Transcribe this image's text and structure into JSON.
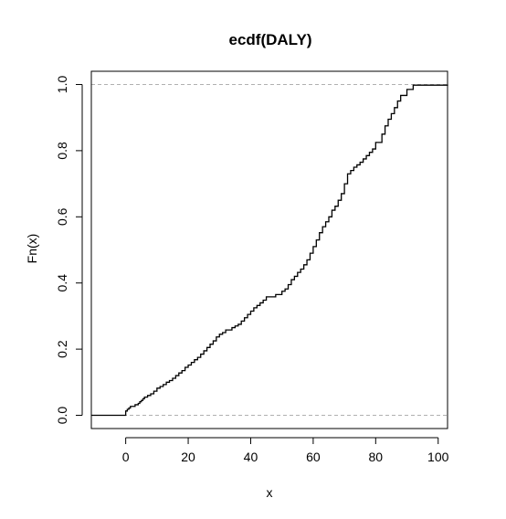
{
  "chart_data": {
    "type": "line",
    "subtype": "ecdf-step",
    "title": "ecdf(DALY)",
    "xlabel": "x",
    "ylabel": "Fn(x)",
    "xlim": [
      -11,
      103
    ],
    "ylim": [
      -0.04,
      1.04
    ],
    "x_ticks": [
      0,
      20,
      40,
      60,
      80,
      100
    ],
    "x_tick_labels": [
      "0",
      "20",
      "40",
      "60",
      "80",
      "100"
    ],
    "y_ticks": [
      0.0,
      0.2,
      0.4,
      0.6,
      0.8,
      1.0
    ],
    "y_tick_labels": [
      "0.0",
      "0.2",
      "0.4",
      "0.6",
      "0.8",
      "1.0"
    ],
    "reference_lines": [
      0,
      1
    ],
    "grid": false,
    "legend": "none",
    "colors": {
      "line": "#000000",
      "reference": "#b0b0b0",
      "frame": "#000000",
      "background": "#ffffff"
    },
    "series": [
      {
        "x": [
          -11,
          0,
          0.5,
          1,
          1.5,
          3,
          4,
          4.5,
          5,
          5.5,
          6,
          7,
          8,
          9,
          10,
          11,
          12,
          13,
          14,
          15,
          16,
          17,
          18,
          19,
          20,
          21,
          22,
          23,
          24,
          25,
          26,
          27,
          28,
          29,
          30,
          31,
          32,
          34,
          35,
          36,
          37,
          38,
          39,
          40,
          41,
          42,
          43,
          44,
          45,
          48,
          50,
          51,
          52,
          53,
          54,
          55,
          56,
          57,
          58,
          59,
          60,
          61,
          62,
          63,
          64,
          65,
          66,
          67,
          68,
          69,
          70,
          71,
          72,
          73,
          74,
          75,
          76,
          77,
          78,
          79,
          80,
          82,
          83,
          84,
          85,
          86,
          87,
          88,
          90,
          92,
          103
        ],
        "y": [
          0.0,
          0.013,
          0.018,
          0.022,
          0.027,
          0.032,
          0.036,
          0.041,
          0.045,
          0.05,
          0.055,
          0.06,
          0.065,
          0.073,
          0.082,
          0.087,
          0.093,
          0.1,
          0.105,
          0.112,
          0.12,
          0.128,
          0.135,
          0.145,
          0.152,
          0.16,
          0.168,
          0.175,
          0.185,
          0.195,
          0.205,
          0.215,
          0.225,
          0.237,
          0.245,
          0.25,
          0.258,
          0.265,
          0.27,
          0.275,
          0.285,
          0.295,
          0.305,
          0.315,
          0.325,
          0.332,
          0.34,
          0.348,
          0.358,
          0.365,
          0.375,
          0.382,
          0.395,
          0.41,
          0.42,
          0.432,
          0.442,
          0.455,
          0.47,
          0.49,
          0.51,
          0.53,
          0.552,
          0.57,
          0.585,
          0.6,
          0.62,
          0.632,
          0.65,
          0.67,
          0.7,
          0.73,
          0.74,
          0.75,
          0.757,
          0.765,
          0.775,
          0.785,
          0.795,
          0.805,
          0.825,
          0.85,
          0.875,
          0.895,
          0.912,
          0.93,
          0.95,
          0.967,
          0.985,
          0.998,
          1.0
        ]
      }
    ]
  }
}
